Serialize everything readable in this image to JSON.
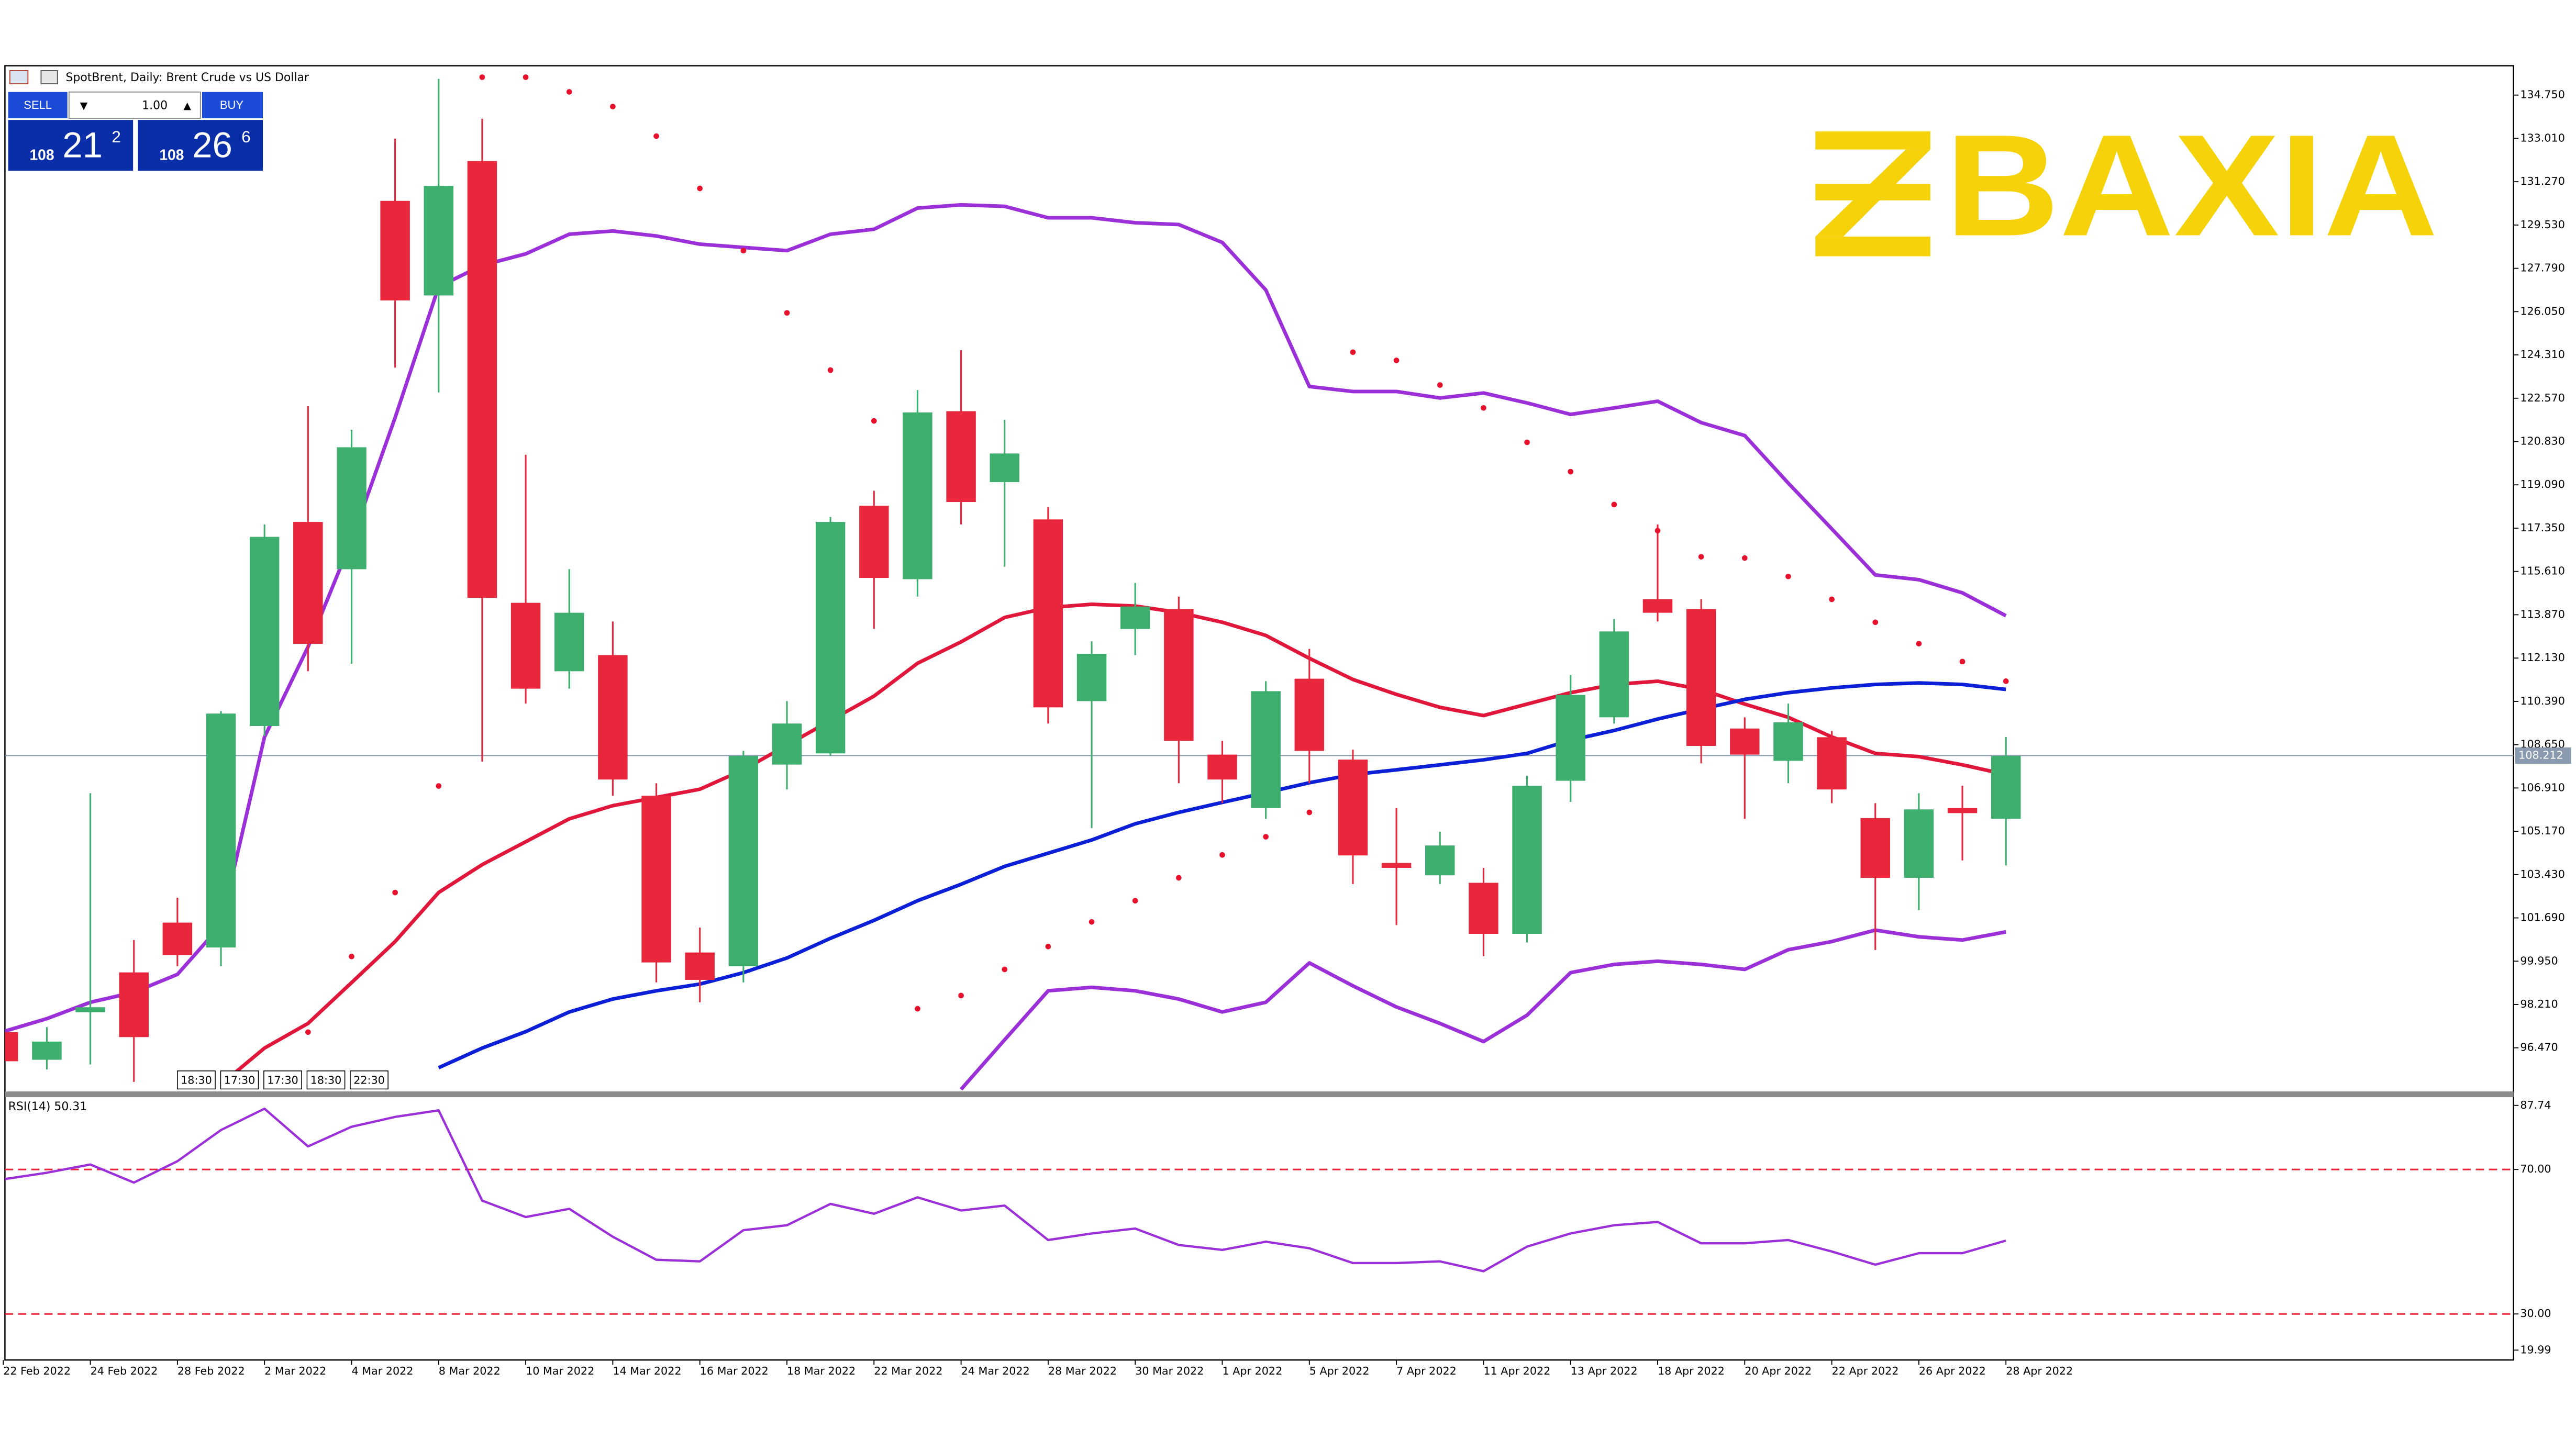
{
  "header": {
    "symbol_title": "SpotBrent, Daily:  Brent Crude vs US Dollar"
  },
  "trade_panel": {
    "sell": "SELL",
    "volume": "1.00",
    "buy": "BUY",
    "sell_big": "108",
    "sell_mid": "21",
    "sell_sup": "2",
    "buy_big": "108",
    "buy_mid": "26",
    "buy_sup": "6"
  },
  "logo": "BAXIA",
  "session_times": [
    "18:30",
    "17:30",
    "17:30",
    "18:30",
    "22:30"
  ],
  "chart_data": [
    {
      "type": "candlestick",
      "categories": [
        "22 Feb 2022",
        null,
        "24 Feb 2022",
        null,
        "28 Feb 2022",
        null,
        "2 Mar 2022",
        null,
        "4 Mar 2022",
        null,
        "8 Mar 2022",
        null,
        "10 Mar 2022",
        null,
        "14 Mar 2022",
        null,
        "16 Mar 2022",
        null,
        "18 Mar 2022",
        null,
        "22 Mar 2022",
        null,
        "24 Mar 2022",
        null,
        "28 Mar 2022",
        null,
        "30 Mar 2022",
        null,
        "1 Apr 2022",
        null,
        "5 Apr 2022",
        null,
        "7 Apr 2022",
        null,
        "11 Apr 2022",
        null,
        "13 Apr 2022",
        null,
        "18 Apr 2022",
        null,
        "20 Apr 2022",
        null,
        "22 Apr 2022",
        null,
        "26 Apr 2022",
        null,
        "28 Apr 2022"
      ],
      "open": [
        97.1,
        95.99,
        97.9,
        99.5,
        101.5,
        100.5,
        109.4,
        117.6,
        115.7,
        130.5,
        126.7,
        132.1,
        114.35,
        111.6,
        112.25,
        106.6,
        100.3,
        99.75,
        107.85,
        108.3,
        118.25,
        115.3,
        122.05,
        119.2,
        117.7,
        110.4,
        113.3,
        114.1,
        108.25,
        106.1,
        111.3,
        108.05,
        103.9,
        103.4,
        103.1,
        101.05,
        107.2,
        109.75,
        114.5,
        114.1,
        109.3,
        108.0,
        108.95,
        105.7,
        103.3,
        106.1,
        105.67
      ],
      "high": [
        97.4,
        97.3,
        106.7,
        100.8,
        102.5,
        110.0,
        117.5,
        122.25,
        121.3,
        133.0,
        135.4,
        133.8,
        120.3,
        115.7,
        113.6,
        107.1,
        101.3,
        108.4,
        110.4,
        117.8,
        118.85,
        122.9,
        124.5,
        121.7,
        118.2,
        112.8,
        115.15,
        114.6,
        108.8,
        111.2,
        112.5,
        108.45,
        106.1,
        105.15,
        103.7,
        107.4,
        111.45,
        113.7,
        117.5,
        114.5,
        109.75,
        110.3,
        109.2,
        106.3,
        106.7,
        107.0,
        108.96
      ],
      "low": [
        95.6,
        95.6,
        95.8,
        95.1,
        99.75,
        99.75,
        109.0,
        111.6,
        111.9,
        123.8,
        122.8,
        107.97,
        110.3,
        110.9,
        106.6,
        99.1,
        98.3,
        99.1,
        106.85,
        108.2,
        113.3,
        114.6,
        117.5,
        115.8,
        109.5,
        105.3,
        112.25,
        107.1,
        106.3,
        105.67,
        107.1,
        103.05,
        101.4,
        103.05,
        100.15,
        100.7,
        106.35,
        109.5,
        113.6,
        107.9,
        105.67,
        107.1,
        106.3,
        100.4,
        102.0,
        104.0,
        103.8
      ],
      "close": [
        95.93,
        96.72,
        98.1,
        96.9,
        100.2,
        109.9,
        117.0,
        112.7,
        120.6,
        126.5,
        131.1,
        114.55,
        110.9,
        113.95,
        107.25,
        99.9,
        99.2,
        108.2,
        109.5,
        117.6,
        115.35,
        122.0,
        118.4,
        120.35,
        110.15,
        112.3,
        114.2,
        108.8,
        107.25,
        110.8,
        108.4,
        104.2,
        103.7,
        104.6,
        101.05,
        107.0,
        110.65,
        113.2,
        113.95,
        108.6,
        108.25,
        109.55,
        106.85,
        103.3,
        106.05,
        105.9,
        108.2
      ],
      "up_color": "#3dae6e",
      "down_color": "#e8273d",
      "ylim": [
        94.75,
        135.93
      ],
      "yticks": [
        {
          "value": 134.75,
          "label": "134.750"
        },
        {
          "value": 133.01,
          "label": "133.010"
        },
        {
          "value": 131.27,
          "label": "131.270"
        },
        {
          "value": 129.53,
          "label": "129.530"
        },
        {
          "value": 127.79,
          "label": "127.790"
        },
        {
          "value": 126.05,
          "label": "126.050"
        },
        {
          "value": 124.31,
          "label": "124.310"
        },
        {
          "value": 122.57,
          "label": "122.570"
        },
        {
          "value": 120.83,
          "label": "120.830"
        },
        {
          "value": 119.09,
          "label": "119.090"
        },
        {
          "value": 117.35,
          "label": "117.350"
        },
        {
          "value": 115.61,
          "label": "115.610"
        },
        {
          "value": 113.87,
          "label": "113.870"
        },
        {
          "value": 112.13,
          "label": "112.130"
        },
        {
          "value": 110.39,
          "label": "110.390"
        },
        {
          "value": 108.65,
          "label": "108.650"
        },
        {
          "value": 106.91,
          "label": "106.910"
        },
        {
          "value": 105.17,
          "label": "105.170"
        },
        {
          "value": 103.43,
          "label": "103.430"
        },
        {
          "value": 101.69,
          "label": "101.690"
        },
        {
          "value": 99.95,
          "label": "99.950"
        },
        {
          "value": 98.21,
          "label": "98.210"
        },
        {
          "value": 96.47,
          "label": "96.470"
        }
      ],
      "grid": false,
      "current_price": 108.212,
      "current_price_color": "#8a9bb0",
      "overlays": [
        {
          "color": "#9b30d9",
          "values": [
            97.12,
            97.64,
            98.3,
            98.7,
            99.42,
            101.4,
            108.96,
            112.58,
            116.86,
            121.79,
            127.05,
            127.91,
            128.37,
            129.16,
            129.29,
            129.09,
            128.76,
            128.63,
            128.5,
            129.16,
            129.36,
            130.21,
            130.34,
            130.28,
            129.82,
            129.82,
            129.62,
            129.55,
            128.83,
            126.92,
            123.04,
            122.84,
            122.84,
            122.58,
            122.78,
            122.38,
            121.92,
            122.18,
            122.45,
            121.59,
            121.07,
            119.16,
            117.32,
            115.47,
            115.28,
            114.75,
            113.83
          ]
        },
        {
          "color": "#9b30d9",
          "values": [
            null,
            null,
            null,
            null,
            null,
            null,
            null,
            null,
            null,
            null,
            null,
            null,
            null,
            null,
            null,
            null,
            null,
            null,
            null,
            null,
            null,
            null,
            94.8,
            96.79,
            98.76,
            98.9,
            98.76,
            98.43,
            97.91,
            98.3,
            99.88,
            98.96,
            98.11,
            97.45,
            96.72,
            97.78,
            99.49,
            99.82,
            99.95,
            99.82,
            99.62,
            100.41,
            100.74,
            101.2,
            100.93,
            100.8,
            101.13
          ]
        },
        {
          "color": "#e0173a",
          "values": [
            null,
            null,
            null,
            null,
            null,
            95.0,
            96.46,
            97.45,
            99.09,
            100.74,
            102.71,
            103.83,
            104.75,
            105.67,
            106.2,
            106.53,
            106.86,
            107.64,
            108.63,
            109.62,
            110.6,
            111.92,
            112.78,
            113.76,
            114.16,
            114.29,
            114.22,
            113.96,
            113.57,
            113.04,
            112.12,
            111.27,
            110.67,
            110.15,
            109.82,
            110.28,
            110.74,
            111.07,
            111.2,
            110.87,
            110.28,
            109.75,
            108.96,
            108.3,
            108.17,
            107.84,
            107.45
          ]
        },
        {
          "color": "#0a1fd6",
          "values": [
            null,
            null,
            null,
            null,
            null,
            null,
            null,
            null,
            null,
            null,
            95.67,
            96.46,
            97.12,
            97.91,
            98.43,
            98.76,
            99.03,
            99.49,
            100.08,
            100.87,
            101.59,
            102.38,
            103.04,
            103.76,
            104.29,
            104.82,
            105.47,
            105.93,
            106.33,
            106.72,
            107.12,
            107.45,
            107.64,
            107.84,
            108.04,
            108.3,
            108.83,
            109.22,
            109.68,
            110.08,
            110.47,
            110.74,
            110.93,
            111.07,
            111.13,
            111.07,
            110.87
          ]
        }
      ],
      "sar": {
        "color": "#e8112d",
        "values": [
          null,
          null,
          null,
          null,
          null,
          null,
          null,
          97.1,
          100.14,
          102.71,
          106.99,
          135.47,
          135.47,
          134.88,
          134.29,
          133.1,
          131.0,
          128.5,
          126.0,
          123.7,
          121.66,
          98.04,
          98.57,
          99.62,
          100.54,
          101.53,
          102.38,
          103.3,
          104.22,
          104.95,
          105.93,
          124.42,
          124.09,
          123.1,
          122.18,
          120.8,
          119.62,
          118.3,
          117.25,
          116.2,
          116.15,
          115.41,
          114.49,
          113.57,
          112.71,
          111.99,
          111.2
        ]
      }
    },
    {
      "type": "line",
      "label": "RSI(14) 50.31",
      "color": "#9b30d9",
      "level_color": "#e8273d",
      "values": [
        67.29,
        69.1,
        71.38,
        66.38,
        72.29,
        80.92,
        86.83,
        76.38,
        81.83,
        84.56,
        86.38,
        61.38,
        56.83,
        59.1,
        51.38,
        45.01,
        44.56,
        53.19,
        54.56,
        60.47,
        57.74,
        62.29,
        58.65,
        60.01,
        50.47,
        52.29,
        53.65,
        49.1,
        47.74,
        50.01,
        48.19,
        44.1,
        44.1,
        44.56,
        41.83,
        48.65,
        52.29,
        54.56,
        55.47,
        49.56,
        49.56,
        50.47,
        47.29,
        43.65,
        46.83,
        46.83,
        50.31
      ],
      "ylim": [
        19.99,
        87.74
      ],
      "yticks": [
        87.74,
        {
          "value": 70,
          "label": "70.00"
        },
        {
          "value": 30,
          "label": "30.00"
        },
        19.99
      ]
    }
  ]
}
